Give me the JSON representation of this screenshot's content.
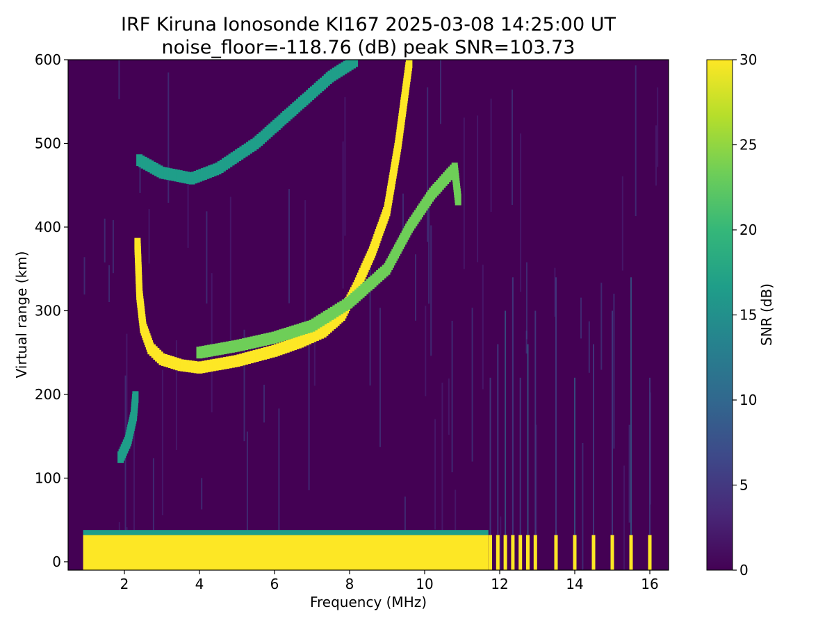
{
  "chart_data": {
    "type": "heatmap",
    "title": "IRF Kiruna Ionosonde KI167 2025-03-08 14:25:00  UT",
    "subtitle": "noise_floor=-118.76 (dB) peak SNR=103.73",
    "xlabel": "Frequency (MHz)",
    "ylabel": "Virtual range (km)",
    "xlim": [
      0.5,
      16.5
    ],
    "ylim": [
      -10,
      600
    ],
    "xticks": [
      2,
      4,
      6,
      8,
      10,
      12,
      14,
      16
    ],
    "yticks": [
      0,
      100,
      200,
      300,
      400,
      500,
      600
    ],
    "x_tick_labels": [
      "2",
      "4",
      "6",
      "8",
      "10",
      "12",
      "14",
      "16"
    ],
    "y_tick_labels": [
      "0",
      "100",
      "200",
      "300",
      "400",
      "500",
      "600"
    ],
    "grid": false,
    "colorbar": {
      "label": "SNR (dB)",
      "min": 0,
      "max": 30,
      "ticks": [
        0,
        5,
        10,
        15,
        20,
        25,
        30
      ],
      "tick_labels": [
        "0",
        "5",
        "10",
        "15",
        "20",
        "25",
        "30"
      ],
      "colormap": "viridis",
      "colors": [
        "#440154",
        "#482878",
        "#3e4989",
        "#31688e",
        "#26828e",
        "#1f9e89",
        "#35b779",
        "#6ece58",
        "#b5de2b",
        "#fde725"
      ]
    },
    "background_color": "#440154",
    "sweep_range_mhz": [
      0.9,
      16.3
    ],
    "traces": [
      {
        "layer": "E region",
        "points": [
          [
            1.9,
            125
          ],
          [
            2.1,
            145
          ],
          [
            2.25,
            175
          ],
          [
            2.3,
            200
          ]
        ],
        "snr": 18
      },
      {
        "layer": "F O-mode",
        "points": [
          [
            2.35,
            380
          ],
          [
            2.4,
            320
          ],
          [
            2.5,
            280
          ],
          [
            2.7,
            255
          ],
          [
            3.0,
            242
          ],
          [
            3.5,
            235
          ],
          [
            4.0,
            232
          ],
          [
            5.0,
            240
          ],
          [
            6.0,
            252
          ],
          [
            6.7,
            263
          ],
          [
            7.3,
            275
          ],
          [
            7.8,
            295
          ],
          [
            8.2,
            330
          ],
          [
            8.6,
            370
          ],
          [
            9.0,
            420
          ],
          [
            9.3,
            500
          ],
          [
            9.6,
            600
          ]
        ],
        "snr": 30
      },
      {
        "layer": "F X-mode",
        "points": [
          [
            4.0,
            250
          ],
          [
            5.0,
            258
          ],
          [
            6.0,
            268
          ],
          [
            7.0,
            282
          ],
          [
            8.0,
            310
          ],
          [
            9.0,
            350
          ],
          [
            9.6,
            400
          ],
          [
            10.2,
            440
          ],
          [
            10.8,
            470
          ],
          [
            10.9,
            430
          ]
        ],
        "snr": 22
      },
      {
        "layer": "second hop",
        "points": [
          [
            2.4,
            480
          ],
          [
            3.0,
            465
          ],
          [
            3.8,
            458
          ],
          [
            4.5,
            470
          ],
          [
            5.5,
            500
          ],
          [
            6.5,
            540
          ],
          [
            7.5,
            580
          ],
          [
            8.2,
            600
          ]
        ],
        "snr": 18
      },
      {
        "layer": "ground clutter",
        "points": [
          [
            0.9,
            0
          ],
          [
            11.7,
            0
          ]
        ],
        "range_km": [
          -10,
          32
        ],
        "snr": 30
      }
    ],
    "discrete_channels_mhz": [
      11.75,
      11.95,
      12.15,
      12.35,
      12.55,
      12.75,
      12.95,
      13.5,
      14.0,
      14.5,
      15.0,
      15.5,
      16.0
    ]
  }
}
